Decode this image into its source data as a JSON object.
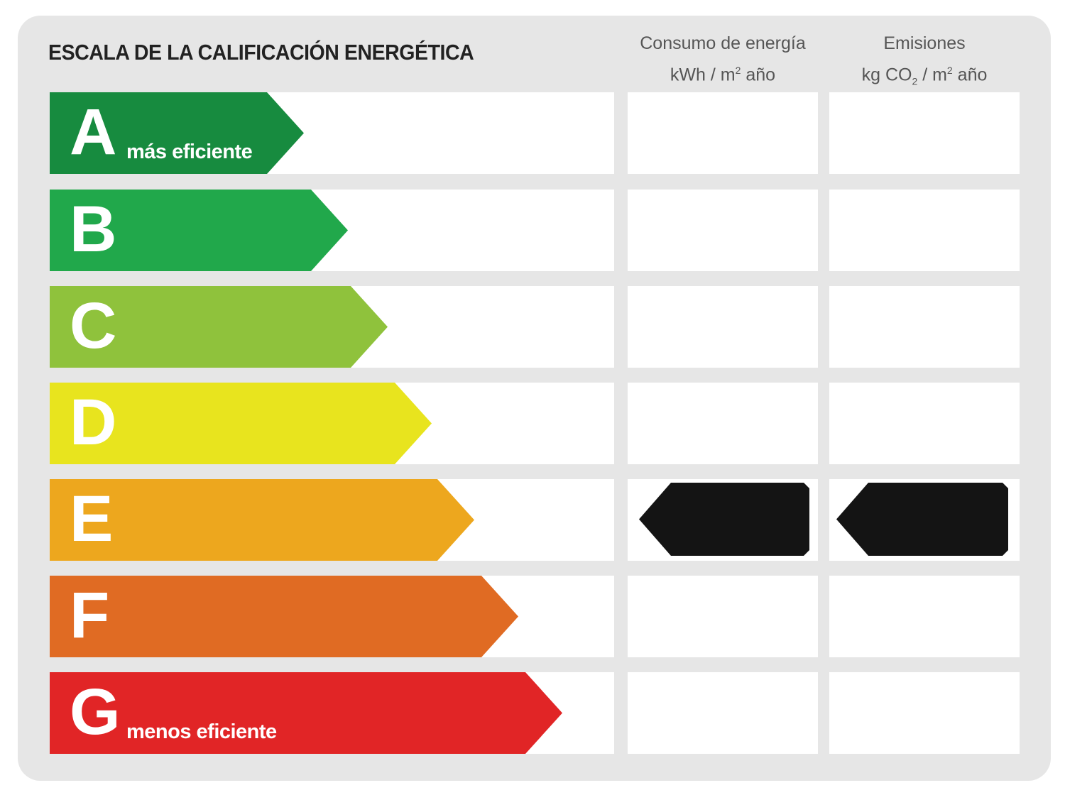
{
  "title": "ESCALA DE LA CALIFICACIÓN ENERGÉTICA",
  "columns": {
    "consumo": {
      "line1": "Consumo de energía",
      "unit": "kWh / m",
      "sup": "2",
      "tail": " año"
    },
    "emisiones": {
      "line1": "Emisiones",
      "unit": "kg CO",
      "sub": "2",
      "mid": " / m",
      "sup": "2",
      "tail": " año"
    }
  },
  "classes": [
    {
      "letter": "A",
      "label": "más eficiente",
      "color": "#178b3f"
    },
    {
      "letter": "B",
      "label": "",
      "color": "#21a84b"
    },
    {
      "letter": "C",
      "label": "",
      "color": "#8fc23c"
    },
    {
      "letter": "D",
      "label": "",
      "color": "#e8e41e"
    },
    {
      "letter": "E",
      "label": "",
      "color": "#eda71e"
    },
    {
      "letter": "F",
      "label": "",
      "color": "#e06b23"
    },
    {
      "letter": "G",
      "label": "menos eficiente",
      "color": "#e12526"
    }
  ],
  "rating": {
    "consumo": "E",
    "emisiones": "E",
    "marker_color": "#141414"
  }
}
